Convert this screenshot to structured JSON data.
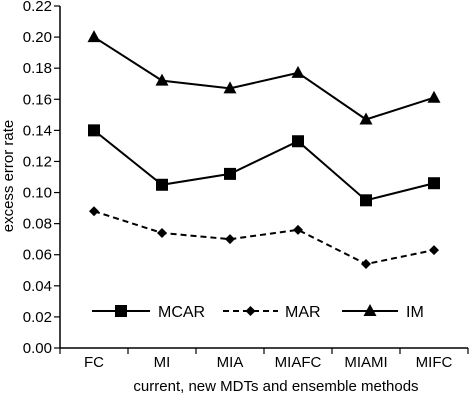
{
  "chart_data": {
    "type": "line",
    "xlabel": "current, new MDTs and ensemble methods",
    "ylabel": "excess error rate",
    "ylim": [
      0,
      0.22
    ],
    "yticks": [
      "0.00",
      "0.02",
      "0.04",
      "0.06",
      "0.08",
      "0.10",
      "0.12",
      "0.14",
      "0.16",
      "0.18",
      "0.20",
      "0.22"
    ],
    "categories": [
      "FC",
      "MI",
      "MIA",
      "MIAFC",
      "MIAMI",
      "MIFC"
    ],
    "grid": false,
    "legend_position": "bottom-inside",
    "series": [
      {
        "name": "MCAR",
        "values": [
          0.14,
          0.105,
          0.112,
          0.133,
          0.095,
          0.106
        ],
        "line": "solid",
        "marker": "square",
        "color": "#000000"
      },
      {
        "name": "MAR",
        "values": [
          0.088,
          0.074,
          0.07,
          0.076,
          0.054,
          0.063
        ],
        "line": "dashed",
        "marker": "diamond",
        "color": "#000000"
      },
      {
        "name": "IM",
        "values": [
          0.2,
          0.172,
          0.167,
          0.177,
          0.147,
          0.161
        ],
        "line": "solid",
        "marker": "triangle",
        "color": "#000000"
      }
    ]
  }
}
